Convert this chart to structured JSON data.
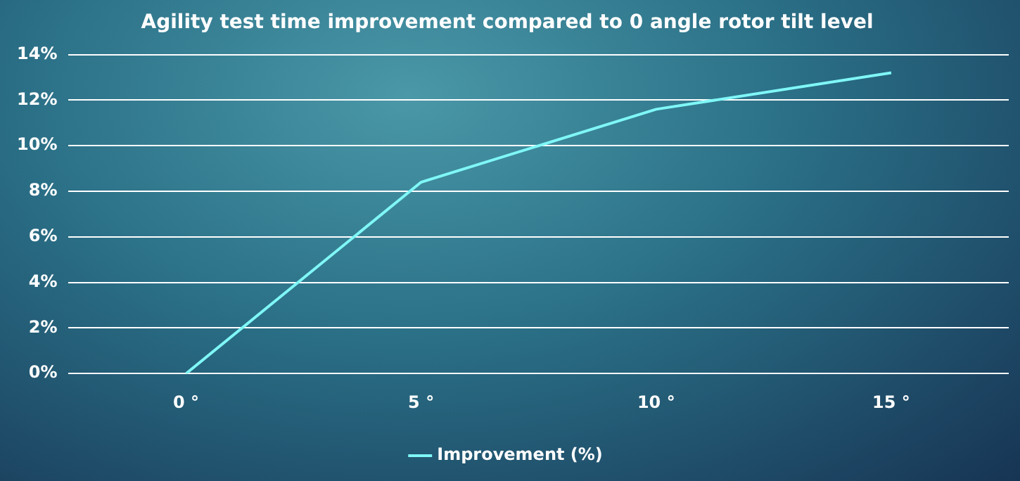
{
  "chart_data": {
    "type": "line",
    "title": "Agility test time improvement compared to 0 angle rotor tilt level",
    "categories": [
      "0 °",
      "5 °",
      "10 °",
      "15 °"
    ],
    "series": [
      {
        "name": "Improvement (%)",
        "color": "#7ff7f7",
        "values": [
          0,
          8.4,
          11.6,
          13.2
        ]
      }
    ],
    "ylim": [
      0,
      14
    ],
    "yticks": [
      {
        "value": 0,
        "label": "0%"
      },
      {
        "value": 2,
        "label": "2%"
      },
      {
        "value": 4,
        "label": "4%"
      },
      {
        "value": 6,
        "label": "6%"
      },
      {
        "value": 8,
        "label": "8%"
      },
      {
        "value": 10,
        "label": "10%"
      },
      {
        "value": 12,
        "label": "12%"
      },
      {
        "value": 14,
        "label": "14%"
      }
    ],
    "grid": "y",
    "legend": "bottom",
    "marker": "none",
    "line_style": "solid"
  }
}
